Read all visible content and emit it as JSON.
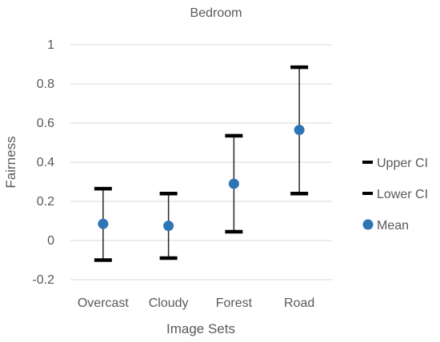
{
  "chart_data": {
    "type": "scatter",
    "title": "Bedroom",
    "xlabel": "Image Sets",
    "ylabel": "Fairness",
    "categories": [
      "Overcast",
      "Cloudy",
      "Forest",
      "Road"
    ],
    "ylim": [
      -0.2,
      1
    ],
    "yticks": [
      -0.2,
      0,
      0.2,
      0.4,
      0.6,
      0.8,
      1
    ],
    "ytick_labels": [
      "-0.2",
      "0",
      "0.2",
      "0.4",
      "0.6",
      "0.8",
      "1"
    ],
    "grid": true,
    "legend_position": "right",
    "series": [
      {
        "name": "Upper CI",
        "values": [
          0.265,
          0.24,
          0.535,
          0.885
        ],
        "color": "#000000",
        "marker": "dash"
      },
      {
        "name": "Lower CI",
        "values": [
          -0.1,
          -0.09,
          0.045,
          0.24
        ],
        "color": "#000000",
        "marker": "dash"
      },
      {
        "name": "Mean",
        "values": [
          0.085,
          0.075,
          0.29,
          0.565
        ],
        "color": "#2E75B6",
        "marker": "circle"
      }
    ]
  }
}
